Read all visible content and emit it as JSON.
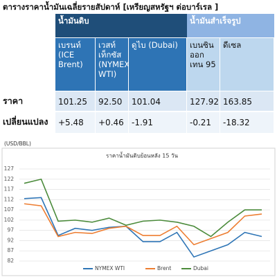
{
  "title": "ตารางราคาน้ำมันเฉลี่ยรายสัปดาห์ [เหรียญสหรัฐฯ ต่อบาร์เรล ]",
  "table": {
    "groups": [
      "น้ำมันดิบ",
      "น้ำมันสำเร็จรูป"
    ],
    "columns": [
      "เบรนท์ (ICE Brent)",
      "เวสท์เท็กซัส (NYMEX WTI)",
      "ดูไบ (Dubai)",
      "เบนซินออกเทน 95",
      "ดีเซล"
    ],
    "rows": [
      {
        "label": "ราคา",
        "cells": [
          "101.25",
          "92.50",
          "101.04",
          "127.92",
          "163.85"
        ]
      },
      {
        "label": "เปลี่ยนแปลง",
        "cells": [
          "+5.48",
          "+0.46",
          "-1.91",
          "-0.21",
          "-18.32"
        ]
      }
    ]
  },
  "chart_data": {
    "type": "line",
    "title": "ราคาน้ำมันดิบย้อนหลัง 15 วัน",
    "unit_label": "(USD/BBL)",
    "categories": [
      null,
      null,
      null,
      null,
      null,
      null,
      null,
      null,
      null,
      null,
      null,
      null,
      null,
      null,
      null
    ],
    "series": [
      {
        "name": "NYMEX WTI",
        "color": "#2e75b6",
        "values": [
          112.5,
          113,
          94.5,
          98,
          97,
          98.5,
          99,
          91.5,
          91.5,
          96,
          84,
          87,
          90,
          96,
          94
        ]
      },
      {
        "name": "Brent",
        "color": "#ed7d31",
        "values": [
          110,
          109,
          94,
          96,
          95.5,
          98,
          99,
          94.5,
          94.5,
          99,
          90,
          93,
          96,
          104,
          105
        ]
      },
      {
        "name": "Dubai",
        "color": "#4b8b3b",
        "values": [
          120,
          122,
          101.5,
          102,
          101,
          103,
          99.5,
          101.5,
          102,
          101,
          99,
          94,
          101,
          107,
          107
        ]
      }
    ],
    "ylim": [
      82,
      127
    ],
    "yticks": [
      82,
      87,
      92,
      97,
      102,
      107,
      112,
      117,
      122,
      127
    ],
    "grid": true
  }
}
